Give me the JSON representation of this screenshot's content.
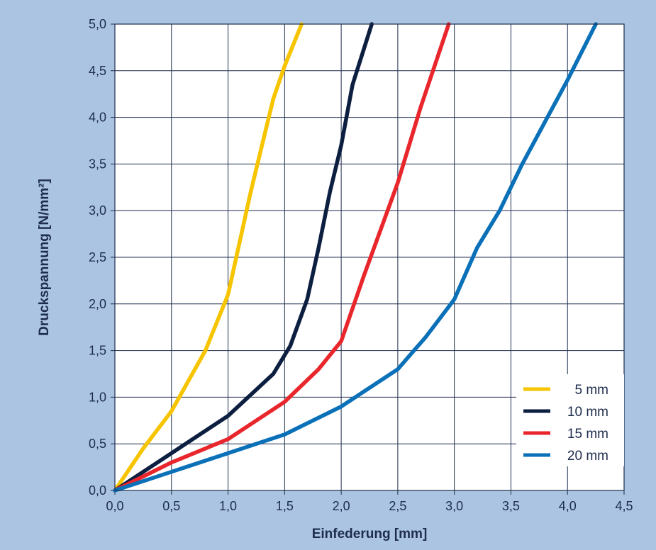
{
  "chart_data": {
    "type": "line",
    "xlabel": "Einfederung [mm]",
    "ylabel": "Druckspannung [N/mm²]",
    "xlim": [
      0,
      4.5
    ],
    "ylim": [
      0,
      5.0
    ],
    "x_ticks": [
      0,
      0.5,
      1.0,
      1.5,
      2.0,
      2.5,
      3.0,
      3.5,
      4.0,
      4.5
    ],
    "y_ticks": [
      0,
      0.5,
      1.0,
      1.5,
      2.0,
      2.5,
      3.0,
      3.5,
      4.0,
      4.5,
      5.0
    ],
    "x_tick_labels": [
      "0,0",
      "0,5",
      "1,0",
      "1,5",
      "2,0",
      "2,5",
      "3,0",
      "3,5",
      "4,0",
      "4,5"
    ],
    "y_tick_labels": [
      "0,0",
      "0,5",
      "1,0",
      "1,5",
      "2,0",
      "2,5",
      "3,0",
      "3,5",
      "4,0",
      "4,5",
      "5,0"
    ],
    "grid": true,
    "legend_position": "bottom-right",
    "series": [
      {
        "name": "5 mm",
        "color": "#f6c400",
        "points": [
          [
            0.0,
            0.0
          ],
          [
            0.25,
            0.45
          ],
          [
            0.5,
            0.85
          ],
          [
            0.8,
            1.5
          ],
          [
            1.0,
            2.1
          ],
          [
            1.1,
            2.65
          ],
          [
            1.2,
            3.2
          ],
          [
            1.3,
            3.7
          ],
          [
            1.4,
            4.2
          ],
          [
            1.5,
            4.55
          ],
          [
            1.65,
            5.0
          ]
        ]
      },
      {
        "name": "10 mm",
        "color": "#0d1f40",
        "points": [
          [
            0.0,
            0.0
          ],
          [
            0.5,
            0.4
          ],
          [
            1.0,
            0.8
          ],
          [
            1.4,
            1.25
          ],
          [
            1.55,
            1.55
          ],
          [
            1.7,
            2.05
          ],
          [
            1.8,
            2.6
          ],
          [
            1.9,
            3.2
          ],
          [
            2.0,
            3.7
          ],
          [
            2.1,
            4.35
          ],
          [
            2.27,
            5.0
          ]
        ]
      },
      {
        "name": "15 mm",
        "color": "#e8262c",
        "points": [
          [
            0.0,
            0.0
          ],
          [
            0.5,
            0.3
          ],
          [
            1.0,
            0.55
          ],
          [
            1.5,
            0.95
          ],
          [
            1.8,
            1.3
          ],
          [
            2.0,
            1.6
          ],
          [
            2.2,
            2.3
          ],
          [
            2.5,
            3.3
          ],
          [
            2.7,
            4.1
          ],
          [
            2.95,
            5.0
          ]
        ]
      },
      {
        "name": "20 mm",
        "color": "#0a70b8",
        "points": [
          [
            0.0,
            0.0
          ],
          [
            0.5,
            0.2
          ],
          [
            1.0,
            0.4
          ],
          [
            1.5,
            0.6
          ],
          [
            2.0,
            0.9
          ],
          [
            2.5,
            1.3
          ],
          [
            2.75,
            1.65
          ],
          [
            3.0,
            2.05
          ],
          [
            3.2,
            2.6
          ],
          [
            3.4,
            3.0
          ],
          [
            3.6,
            3.5
          ],
          [
            3.8,
            3.95
          ],
          [
            4.0,
            4.4
          ],
          [
            4.25,
            5.0
          ]
        ]
      }
    ]
  }
}
